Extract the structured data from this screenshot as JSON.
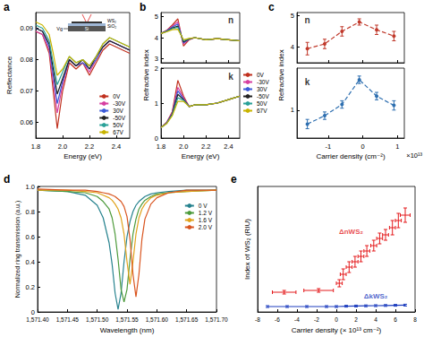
{
  "chart_data": [
    {
      "type": "line",
      "title": "a",
      "xlabel": "Energy (eV)",
      "ylabel": "Reflectance",
      "xlim": [
        1.8,
        2.5
      ],
      "xticks": [
        1.8,
        {
          "value": 2,
          "label": "2.0"
        },
        2.2,
        2.4
      ],
      "ylim": [
        0.055,
        0.095
      ],
      "yticks": [
        0.06,
        0.07,
        0.08,
        0.09
      ],
      "grid": false,
      "legend": "bottom-right",
      "inset": {
        "gate": "Vg",
        "layers": [
          "WS₂",
          "SiO₂",
          "Si"
        ]
      },
      "x": [
        1.8,
        1.85,
        1.9,
        1.93,
        1.96,
        2.0,
        2.05,
        2.1,
        2.15,
        2.2,
        2.25,
        2.3,
        2.35,
        2.4,
        2.45,
        2.5
      ],
      "series": [
        {
          "name": "0V",
          "color": "#c0301e",
          "values": [
            0.089,
            0.088,
            0.082,
            0.07,
            0.058,
            0.07,
            0.079,
            0.077,
            0.079,
            0.075,
            0.079,
            0.083,
            0.085,
            0.084,
            0.083,
            0.082
          ]
        },
        {
          "name": "-30V",
          "color": "#d63fa0",
          "values": [
            0.089,
            0.088,
            0.083,
            0.073,
            0.063,
            0.072,
            0.08,
            0.078,
            0.079,
            0.076,
            0.08,
            0.084,
            0.086,
            0.085,
            0.084,
            0.083
          ]
        },
        {
          "name": "30V",
          "color": "#3c5bd8",
          "values": [
            0.09,
            0.089,
            0.084,
            0.075,
            0.066,
            0.073,
            0.08,
            0.078,
            0.079,
            0.077,
            0.08,
            0.084,
            0.086,
            0.085,
            0.084,
            0.083
          ]
        },
        {
          "name": "-50V",
          "color": "#222222",
          "values": [
            0.09,
            0.089,
            0.085,
            0.077,
            0.069,
            0.074,
            0.08,
            0.078,
            0.08,
            0.077,
            0.081,
            0.084,
            0.086,
            0.085,
            0.084,
            0.083
          ]
        },
        {
          "name": "50V",
          "color": "#2aa198",
          "values": [
            0.091,
            0.09,
            0.086,
            0.079,
            0.072,
            0.076,
            0.081,
            0.079,
            0.08,
            0.078,
            0.081,
            0.085,
            0.087,
            0.086,
            0.085,
            0.084
          ]
        },
        {
          "name": "67V",
          "color": "#c8b400",
          "values": [
            0.092,
            0.091,
            0.088,
            0.082,
            0.075,
            0.077,
            0.081,
            0.079,
            0.08,
            0.078,
            0.081,
            0.085,
            0.087,
            0.086,
            0.085,
            0.084
          ]
        }
      ]
    },
    {
      "type": "line",
      "title": "b",
      "ylabel": "Refractive index",
      "tick_labels": "y",
      "xlim": [
        1.8,
        2.5
      ],
      "xticks": [
        1.8,
        {
          "value": 2,
          "label": "2.0"
        },
        2.2,
        2.4
      ],
      "ylim": [
        2.8,
        5.2
      ],
      "yticks": [
        3,
        4,
        5
      ],
      "grid": false,
      "annotations": [
        {
          "text": "n",
          "x": 2.42,
          "y": 4.85
        }
      ],
      "x": [
        1.8,
        1.85,
        1.9,
        1.95,
        2.0,
        2.05,
        2.1,
        2.2,
        2.3,
        2.4,
        2.5
      ],
      "series": [
        {
          "name": "0V",
          "color": "#c0301e",
          "values": [
            4.2,
            4.35,
            4.6,
            4.9,
            3.6,
            3.9,
            4.0,
            3.9,
            3.95,
            3.9,
            3.85
          ]
        },
        {
          "name": "-30V",
          "color": "#d63fa0",
          "values": [
            4.2,
            4.33,
            4.55,
            4.75,
            3.7,
            3.92,
            4.0,
            3.9,
            3.95,
            3.9,
            3.85
          ]
        },
        {
          "name": "30V",
          "color": "#3c5bd8",
          "values": [
            4.2,
            4.32,
            4.5,
            4.65,
            3.75,
            3.93,
            4.0,
            3.9,
            3.95,
            3.9,
            3.85
          ]
        },
        {
          "name": "-50V",
          "color": "#222222",
          "values": [
            4.2,
            4.3,
            4.46,
            4.55,
            3.8,
            3.94,
            4.0,
            3.9,
            3.95,
            3.9,
            3.85
          ]
        },
        {
          "name": "50V",
          "color": "#2aa198",
          "values": [
            4.2,
            4.3,
            4.43,
            4.5,
            3.85,
            3.95,
            4.0,
            3.9,
            3.95,
            3.9,
            3.85
          ]
        },
        {
          "name": "67V",
          "color": "#c8b400",
          "values": [
            4.2,
            4.28,
            4.38,
            4.4,
            3.9,
            3.96,
            4.0,
            3.9,
            3.95,
            3.9,
            3.85
          ]
        }
      ]
    },
    {
      "type": "line",
      "xlabel": "Energy (eV)",
      "xlim": [
        1.8,
        2.5
      ],
      "xticks": [
        1.8,
        {
          "value": 2,
          "label": "2.0"
        },
        2.2,
        2.4
      ],
      "ylim": [
        0,
        2
      ],
      "yticks": [
        0,
        1,
        2
      ],
      "grid": false,
      "legend": "right",
      "annotations": [
        {
          "text": "k",
          "x": 2.42,
          "y": 1.75
        }
      ],
      "x": [
        1.8,
        1.85,
        1.9,
        1.95,
        2.0,
        2.05,
        2.1,
        2.2,
        2.3,
        2.4,
        2.5
      ],
      "series": [
        {
          "name": "0V",
          "color": "#c0301e",
          "values": [
            0.3,
            0.45,
            0.75,
            1.65,
            1.2,
            0.9,
            0.95,
            0.95,
            1.0,
            1.1,
            1.2
          ]
        },
        {
          "name": "-30V",
          "color": "#d63fa0",
          "values": [
            0.3,
            0.44,
            0.72,
            1.45,
            1.15,
            0.9,
            0.95,
            0.95,
            1.0,
            1.1,
            1.2
          ]
        },
        {
          "name": "30V",
          "color": "#3c5bd8",
          "values": [
            0.3,
            0.43,
            0.7,
            1.35,
            1.12,
            0.9,
            0.95,
            0.95,
            1.0,
            1.1,
            1.2
          ]
        },
        {
          "name": "-50V",
          "color": "#222222",
          "values": [
            0.3,
            0.42,
            0.68,
            1.25,
            1.1,
            0.9,
            0.95,
            0.95,
            1.0,
            1.1,
            1.2
          ]
        },
        {
          "name": "50V",
          "color": "#2aa198",
          "values": [
            0.3,
            0.42,
            0.66,
            1.15,
            1.08,
            0.9,
            0.95,
            0.95,
            1.0,
            1.1,
            1.2
          ]
        },
        {
          "name": "67V",
          "color": "#c8b400",
          "values": [
            0.3,
            0.41,
            0.64,
            1.05,
            1.05,
            0.9,
            0.95,
            0.95,
            1.0,
            1.1,
            1.2
          ]
        }
      ]
    },
    {
      "type": "line",
      "title": "c",
      "ylabel": "Refractive index",
      "tick_labels": "y",
      "xlim": [
        -1.9,
        1.2
      ],
      "xticks": [
        -1,
        0,
        1
      ],
      "ylim": [
        3.5,
        5.1
      ],
      "yticks": [
        4,
        5
      ],
      "grid": false,
      "annotations": [
        {
          "text": "n",
          "x": -1.6,
          "y": 4.85
        }
      ],
      "x": [
        -1.6,
        -1.1,
        -0.6,
        -0.1,
        0.4,
        0.9
      ],
      "series": [
        {
          "color": "#c0392b",
          "marker": "circle",
          "line_style": "dashed",
          "values": [
            3.95,
            4.1,
            4.5,
            4.8,
            4.55,
            4.35
          ],
          "yerr": [
            0.2,
            0.15,
            0.15,
            0.1,
            0.15,
            0.15
          ]
        }
      ]
    },
    {
      "type": "line",
      "xlabel": "Carrier density (cm⁻²)",
      "x_multiplier": "×10¹³",
      "xlim": [
        -1.9,
        1.2
      ],
      "xticks": [
        -1,
        0,
        1
      ],
      "ylim": [
        0.4,
        1.9
      ],
      "yticks": [
        1
      ],
      "grid": false,
      "annotations": [
        {
          "text": "k",
          "x": -1.6,
          "y": 1.6
        }
      ],
      "x": [
        -1.6,
        -1.1,
        -0.6,
        -0.1,
        0.4,
        0.9
      ],
      "series": [
        {
          "color": "#2e6fb0",
          "marker": "circle",
          "line_style": "dashed",
          "values": [
            0.7,
            0.88,
            1.12,
            1.65,
            1.3,
            1.1
          ],
          "yerr": [
            0.1,
            0.08,
            0.08,
            0.08,
            0.08,
            0.1
          ]
        }
      ]
    },
    {
      "type": "line",
      "title": "d",
      "xlabel": "Wavelength (nm)",
      "ylabel": "Normalized ring transmission (a.u.)",
      "xlim": [
        1571.4,
        1571.7
      ],
      "xticks": [
        {
          "value": 1571.4,
          "label": "1,571.40"
        },
        {
          "value": 1571.45,
          "label": "1,571.45"
        },
        {
          "value": 1571.5,
          "label": "1,571.50"
        },
        {
          "value": 1571.55,
          "label": "1,571.55"
        },
        {
          "value": 1571.6,
          "label": "1,571.60"
        },
        {
          "value": 1571.65,
          "label": "1,571.65"
        },
        {
          "value": 1571.7,
          "label": "1,571.70"
        }
      ],
      "ylim": [
        0,
        1
      ],
      "yticks": [
        0,
        0.2,
        0.4,
        0.6,
        0.8,
        {
          "value": 1,
          "label": "1.0"
        }
      ],
      "grid": false,
      "legend": "top-right",
      "x": [
        1571.4,
        1571.45,
        1571.48,
        1571.5,
        1571.51,
        1571.52,
        1571.525,
        1571.53,
        1571.535,
        1571.54,
        1571.545,
        1571.55,
        1571.555,
        1571.56,
        1571.565,
        1571.57,
        1571.575,
        1571.58,
        1571.59,
        1571.6,
        1571.62,
        1571.65,
        1571.7
      ],
      "series": [
        {
          "name": "0 V",
          "color": "#26828e",
          "values": [
            0.97,
            0.96,
            0.93,
            0.85,
            0.75,
            0.55,
            0.38,
            0.15,
            0.02,
            0.15,
            0.4,
            0.6,
            0.72,
            0.8,
            0.85,
            0.88,
            0.9,
            0.92,
            0.94,
            0.95,
            0.96,
            0.97,
            0.97
          ]
        },
        {
          "name": "1.2 V",
          "color": "#4c9a3a",
          "values": [
            0.97,
            0.96,
            0.95,
            0.92,
            0.88,
            0.82,
            0.75,
            0.62,
            0.42,
            0.18,
            0.08,
            0.18,
            0.42,
            0.62,
            0.74,
            0.82,
            0.86,
            0.89,
            0.92,
            0.94,
            0.95,
            0.96,
            0.97
          ]
        },
        {
          "name": "1.6 V",
          "color": "#e0a21a",
          "values": [
            0.97,
            0.97,
            0.96,
            0.95,
            0.93,
            0.91,
            0.89,
            0.86,
            0.82,
            0.75,
            0.62,
            0.4,
            0.22,
            0.4,
            0.62,
            0.75,
            0.82,
            0.86,
            0.91,
            0.93,
            0.95,
            0.96,
            0.97
          ]
        },
        {
          "name": "2.0 V",
          "color": "#d9541e",
          "values": [
            0.98,
            0.97,
            0.97,
            0.96,
            0.95,
            0.94,
            0.93,
            0.92,
            0.9,
            0.88,
            0.84,
            0.76,
            0.58,
            0.3,
            0.12,
            0.3,
            0.58,
            0.74,
            0.86,
            0.91,
            0.95,
            0.97,
            0.97
          ]
        }
      ]
    },
    {
      "type": "line",
      "title": "e",
      "xlabel": "Carrier density (× 10¹³ cm⁻²)",
      "ylabel": "Index of WS₂ (RIU)",
      "tick_labels": "x",
      "xlim": [
        -8,
        8
      ],
      "xticks": [
        -8,
        -6,
        -4,
        -2,
        0,
        2,
        4,
        6,
        8
      ],
      "ylim": [
        0,
        0.7
      ],
      "grid": false,
      "annotations": [
        {
          "text": "ΔnWS₂",
          "x": 1.5,
          "y": 0.45,
          "color": "#e41a1c"
        },
        {
          "text": "ΔkWS₂",
          "x": 4,
          "y": 0.09,
          "color": "#1f3fbf"
        }
      ],
      "series": [
        {
          "type": "scatter",
          "marker": "none",
          "color": "#e41a1c",
          "x": [
            -5.3,
            -1.8,
            0.3,
            0.7,
            1.3,
            1.9,
            2.5,
            3.1,
            3.8,
            4.4,
            5.0,
            5.7,
            6.3,
            7.0
          ],
          "values": [
            0.11,
            0.12,
            0.16,
            0.21,
            0.25,
            0.28,
            0.31,
            0.34,
            0.37,
            0.41,
            0.43,
            0.47,
            0.51,
            0.54
          ],
          "xerr": [
            1.2,
            1.5,
            0.3,
            0.3,
            0.3,
            0.3,
            0.3,
            0.3,
            0.3,
            0.3,
            0.3,
            0.3,
            0.3,
            0.5
          ],
          "yerr": [
            0.01,
            0.01,
            0.02,
            0.03,
            0.03,
            0.03,
            0.03,
            0.03,
            0.03,
            0.03,
            0.03,
            0.04,
            0.04,
            0.04
          ]
        },
        {
          "type": "line",
          "marker": "none",
          "color": "#1f3fbf",
          "x": [
            -7,
            -5,
            -3,
            -1,
            0,
            1,
            2,
            3,
            4,
            5,
            6,
            7
          ],
          "values": [
            0.03,
            0.03,
            0.03,
            0.03,
            0.03,
            0.032,
            0.033,
            0.034,
            0.035,
            0.036,
            0.037,
            0.038
          ],
          "yerr": [
            0.005,
            0.005,
            0.005,
            0.005,
            0.005,
            0.005,
            0.005,
            0.005,
            0.005,
            0.005,
            0.005,
            0.005
          ]
        }
      ]
    }
  ]
}
